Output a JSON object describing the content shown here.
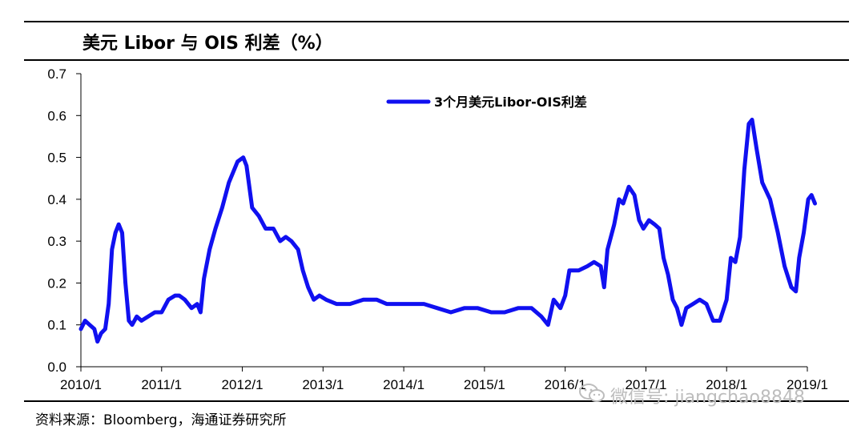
{
  "header": {
    "title": "美元 Libor 与 OIS 利差（%）"
  },
  "footer": {
    "source": "资料来源：Bloomberg，海通证券研究所"
  },
  "watermark": {
    "text": "微信号: jiangchao8848",
    "icon": "wechat-icon"
  },
  "chart_data": {
    "type": "line",
    "title": "美元 Libor 与 OIS 利差（%）",
    "xlabel": "",
    "ylabel": "",
    "ylim": [
      0,
      0.7
    ],
    "yticks": [
      "0.0",
      "0.1",
      "0.2",
      "0.3",
      "0.4",
      "0.5",
      "0.6",
      "0.7"
    ],
    "xlim": [
      "2010-01",
      "2019-01"
    ],
    "xticks": [
      "2010/1",
      "2011/1",
      "2012/1",
      "2013/1",
      "2014/1",
      "2015/1",
      "2016/1",
      "2017/1",
      "2018/1",
      "2019/1"
    ],
    "grid": false,
    "legend": "top-center",
    "series": [
      {
        "name": "3个月美元Libor-OIS利差",
        "color": "#1010f0",
        "points": [
          [
            "2010-01-01",
            0.09
          ],
          [
            "2010-01-20",
            0.11
          ],
          [
            "2010-02-10",
            0.1
          ],
          [
            "2010-03-01",
            0.09
          ],
          [
            "2010-03-15",
            0.06
          ],
          [
            "2010-04-01",
            0.08
          ],
          [
            "2010-04-20",
            0.09
          ],
          [
            "2010-05-05",
            0.15
          ],
          [
            "2010-05-20",
            0.28
          ],
          [
            "2010-06-05",
            0.32
          ],
          [
            "2010-06-20",
            0.34
          ],
          [
            "2010-07-05",
            0.32
          ],
          [
            "2010-07-20",
            0.2
          ],
          [
            "2010-08-05",
            0.11
          ],
          [
            "2010-08-20",
            0.1
          ],
          [
            "2010-09-10",
            0.12
          ],
          [
            "2010-10-01",
            0.11
          ],
          [
            "2010-11-01",
            0.12
          ],
          [
            "2010-12-01",
            0.13
          ],
          [
            "2011-01-01",
            0.13
          ],
          [
            "2011-02-01",
            0.16
          ],
          [
            "2011-03-01",
            0.17
          ],
          [
            "2011-03-20",
            0.17
          ],
          [
            "2011-04-15",
            0.16
          ],
          [
            "2011-05-15",
            0.14
          ],
          [
            "2011-06-10",
            0.15
          ],
          [
            "2011-06-25",
            0.13
          ],
          [
            "2011-07-10",
            0.21
          ],
          [
            "2011-08-05",
            0.28
          ],
          [
            "2011-09-01",
            0.33
          ],
          [
            "2011-10-01",
            0.38
          ],
          [
            "2011-11-01",
            0.44
          ],
          [
            "2011-12-10",
            0.49
          ],
          [
            "2012-01-05",
            0.5
          ],
          [
            "2012-01-20",
            0.48
          ],
          [
            "2012-02-15",
            0.38
          ],
          [
            "2012-03-15",
            0.36
          ],
          [
            "2012-04-15",
            0.33
          ],
          [
            "2012-05-20",
            0.33
          ],
          [
            "2012-06-20",
            0.3
          ],
          [
            "2012-07-15",
            0.31
          ],
          [
            "2012-08-10",
            0.3
          ],
          [
            "2012-09-10",
            0.28
          ],
          [
            "2012-10-01",
            0.23
          ],
          [
            "2012-10-25",
            0.19
          ],
          [
            "2012-11-20",
            0.16
          ],
          [
            "2012-12-15",
            0.17
          ],
          [
            "2013-01-15",
            0.16
          ],
          [
            "2013-03-01",
            0.15
          ],
          [
            "2013-05-01",
            0.15
          ],
          [
            "2013-07-01",
            0.16
          ],
          [
            "2013-09-01",
            0.16
          ],
          [
            "2013-10-15",
            0.15
          ],
          [
            "2013-12-15",
            0.15
          ],
          [
            "2014-02-01",
            0.15
          ],
          [
            "2014-04-01",
            0.15
          ],
          [
            "2014-06-01",
            0.14
          ],
          [
            "2014-08-01",
            0.13
          ],
          [
            "2014-10-01",
            0.14
          ],
          [
            "2014-12-01",
            0.14
          ],
          [
            "2015-02-01",
            0.13
          ],
          [
            "2015-04-01",
            0.13
          ],
          [
            "2015-06-01",
            0.14
          ],
          [
            "2015-08-01",
            0.14
          ],
          [
            "2015-09-15",
            0.12
          ],
          [
            "2015-10-15",
            0.1
          ],
          [
            "2015-11-10",
            0.16
          ],
          [
            "2015-12-10",
            0.14
          ],
          [
            "2016-01-01",
            0.17
          ],
          [
            "2016-01-20",
            0.23
          ],
          [
            "2016-03-01",
            0.23
          ],
          [
            "2016-04-10",
            0.24
          ],
          [
            "2016-05-10",
            0.25
          ],
          [
            "2016-06-10",
            0.24
          ],
          [
            "2016-06-25",
            0.19
          ],
          [
            "2016-07-10",
            0.28
          ],
          [
            "2016-08-10",
            0.34
          ],
          [
            "2016-09-01",
            0.4
          ],
          [
            "2016-09-20",
            0.39
          ],
          [
            "2016-10-15",
            0.43
          ],
          [
            "2016-11-10",
            0.41
          ],
          [
            "2016-12-01",
            0.35
          ],
          [
            "2016-12-20",
            0.33
          ],
          [
            "2017-01-15",
            0.35
          ],
          [
            "2017-02-10",
            0.34
          ],
          [
            "2017-03-01",
            0.33
          ],
          [
            "2017-03-20",
            0.26
          ],
          [
            "2017-04-10",
            0.22
          ],
          [
            "2017-05-01",
            0.16
          ],
          [
            "2017-05-20",
            0.14
          ],
          [
            "2017-06-10",
            0.1
          ],
          [
            "2017-07-01",
            0.14
          ],
          [
            "2017-08-01",
            0.15
          ],
          [
            "2017-09-01",
            0.16
          ],
          [
            "2017-10-01",
            0.15
          ],
          [
            "2017-11-01",
            0.11
          ],
          [
            "2017-12-01",
            0.11
          ],
          [
            "2018-01-01",
            0.16
          ],
          [
            "2018-01-20",
            0.26
          ],
          [
            "2018-02-10",
            0.25
          ],
          [
            "2018-03-01",
            0.31
          ],
          [
            "2018-03-20",
            0.47
          ],
          [
            "2018-04-10",
            0.58
          ],
          [
            "2018-04-25",
            0.59
          ],
          [
            "2018-05-15",
            0.52
          ],
          [
            "2018-06-10",
            0.44
          ],
          [
            "2018-07-15",
            0.4
          ],
          [
            "2018-08-20",
            0.32
          ],
          [
            "2018-09-20",
            0.24
          ],
          [
            "2018-10-20",
            0.19
          ],
          [
            "2018-11-10",
            0.18
          ],
          [
            "2018-11-25",
            0.26
          ],
          [
            "2018-12-15",
            0.32
          ],
          [
            "2019-01-05",
            0.4
          ],
          [
            "2019-01-20",
            0.41
          ],
          [
            "2019-02-05",
            0.39
          ]
        ]
      }
    ]
  }
}
